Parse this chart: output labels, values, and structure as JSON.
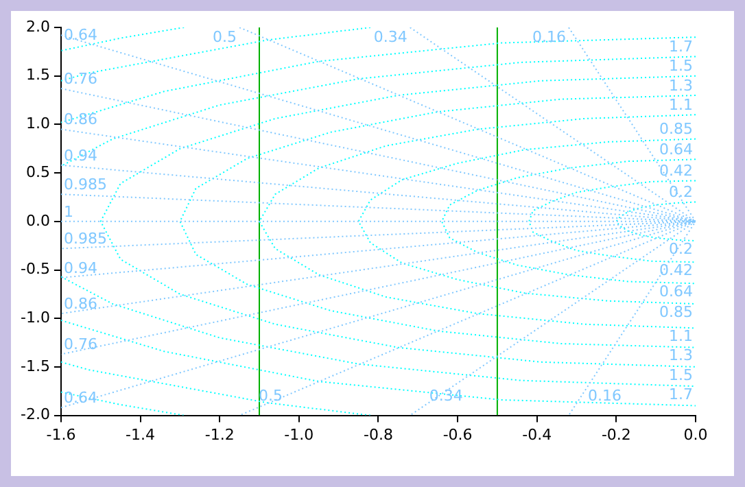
{
  "chart_data": {
    "type": "line",
    "xlim": [
      -1.6,
      0
    ],
    "ylim": [
      -2,
      2
    ],
    "xticks": [
      -1.6,
      -1.4,
      -1.2,
      {
        "value": -1,
        "label": "-1.0"
      },
      -0.8,
      -0.6,
      -0.4,
      -0.2,
      {
        "value": 0,
        "label": "0.0"
      }
    ],
    "yticks": [
      {
        "value": -2,
        "label": "-2.0"
      },
      -1.5,
      {
        "value": -1,
        "label": "-1.0"
      },
      -0.5,
      {
        "value": 0,
        "label": "0.0"
      },
      0.5,
      {
        "value": 1,
        "label": "1.0"
      },
      1.5,
      {
        "value": 2,
        "label": "2.0"
      }
    ],
    "grid": false,
    "legend": false,
    "marker": "none",
    "series": [
      {
        "color": "#80c8ff",
        "line_style": "dotted",
        "x": [
          -1.6,
          0
        ],
        "values": [
          0,
          0
        ]
      },
      {
        "color": "#80c8ff",
        "line_style": "dotted",
        "x": [
          -1.6,
          0,
          -1.6
        ],
        "values": [
          0.28,
          0,
          -0.28
        ]
      },
      {
        "color": "#80c8ff",
        "line_style": "dotted",
        "x": [
          -1.6,
          0,
          -1.6
        ],
        "values": [
          0.58,
          0,
          -0.58
        ]
      },
      {
        "color": "#80c8ff",
        "line_style": "dotted",
        "x": [
          -1.6,
          0,
          -1.6
        ],
        "values": [
          0.95,
          0,
          -0.95
        ]
      },
      {
        "color": "#80c8ff",
        "line_style": "dotted",
        "x": [
          -1.6,
          0,
          -1.6
        ],
        "values": [
          1.37,
          0,
          -1.37
        ]
      },
      {
        "color": "#80c8ff",
        "line_style": "dotted",
        "x": [
          -1.6,
          0,
          -1.6
        ],
        "values": [
          1.92,
          0,
          -1.92
        ]
      },
      {
        "color": "#80c8ff",
        "line_style": "dotted",
        "x": [
          -1.15,
          0,
          -1.15
        ],
        "values": [
          2,
          0,
          -2
        ]
      },
      {
        "color": "#80c8ff",
        "line_style": "dotted",
        "x": [
          -0.72,
          0,
          -0.72
        ],
        "values": [
          2,
          0,
          -2
        ]
      },
      {
        "color": "#80c8ff",
        "line_style": "dotted",
        "x": [
          -0.32,
          0,
          -0.32
        ],
        "values": [
          2,
          0,
          -2
        ]
      },
      {
        "color": "#00ffff",
        "line_style": "dotted",
        "x": [
          0,
          -0.05,
          -0.1,
          -0.14,
          -0.17,
          -0.19,
          -0.2,
          -0.19,
          -0.17,
          -0.14,
          -0.1,
          -0.05,
          0
        ],
        "values": [
          0.2,
          0.19,
          0.17,
          0.14,
          0.1,
          0.05,
          0,
          -0.05,
          -0.1,
          -0.14,
          -0.17,
          -0.19,
          -0.2
        ]
      },
      {
        "color": "#00ffff",
        "line_style": "dotted",
        "x": [
          0,
          -0.11,
          -0.21,
          -0.3,
          -0.36,
          -0.41,
          -0.42,
          -0.41,
          -0.36,
          -0.3,
          -0.21,
          -0.11,
          0
        ],
        "values": [
          0.42,
          0.41,
          0.36,
          0.3,
          0.21,
          0.11,
          0,
          -0.11,
          -0.21,
          -0.3,
          -0.36,
          -0.41,
          -0.42
        ]
      },
      {
        "color": "#00ffff",
        "line_style": "dotted",
        "x": [
          0,
          -0.17,
          -0.32,
          -0.45,
          -0.55,
          -0.62,
          -0.64,
          -0.62,
          -0.55,
          -0.45,
          -0.32,
          -0.17,
          0
        ],
        "values": [
          0.64,
          0.62,
          0.55,
          0.45,
          0.32,
          0.17,
          0,
          -0.17,
          -0.32,
          -0.45,
          -0.55,
          -0.62,
          -0.64
        ]
      },
      {
        "color": "#00ffff",
        "line_style": "dotted",
        "x": [
          0,
          -0.22,
          -0.43,
          -0.6,
          -0.74,
          -0.82,
          -0.85,
          -0.82,
          -0.74,
          -0.6,
          -0.43,
          -0.22,
          0
        ],
        "values": [
          0.85,
          0.82,
          0.74,
          0.6,
          0.43,
          0.22,
          0,
          -0.22,
          -0.43,
          -0.6,
          -0.74,
          -0.82,
          -0.85
        ]
      },
      {
        "color": "#00ffff",
        "line_style": "dotted",
        "x": [
          0,
          -0.28,
          -0.55,
          -0.78,
          -0.95,
          -1.06,
          -1.1,
          -1.06,
          -0.95,
          -0.78,
          -0.55,
          -0.28,
          0
        ],
        "values": [
          1.1,
          1.06,
          0.95,
          0.78,
          0.55,
          0.28,
          0,
          -0.28,
          -0.55,
          -0.78,
          -0.95,
          -1.06,
          -1.1
        ]
      },
      {
        "color": "#00ffff",
        "line_style": "dotted",
        "x": [
          0,
          -0.34,
          -0.65,
          -0.92,
          -1.13,
          -1.26,
          -1.3,
          -1.26,
          -1.13,
          -0.92,
          -0.65,
          -0.34,
          0
        ],
        "values": [
          1.3,
          1.26,
          1.13,
          0.92,
          0.65,
          0.34,
          0,
          -0.34,
          -0.65,
          -0.92,
          -1.13,
          -1.26,
          -1.3
        ]
      },
      {
        "color": "#00ffff",
        "line_style": "dotted",
        "x": [
          0,
          -0.39,
          -0.75,
          -1.06,
          -1.3,
          -1.45,
          -1.5,
          -1.45,
          -1.3,
          -1.06,
          -0.75,
          -0.39,
          0
        ],
        "values": [
          1.5,
          1.45,
          1.3,
          1.06,
          0.75,
          0.39,
          0,
          -0.39,
          -0.75,
          -1.06,
          -1.3,
          -1.45,
          -1.5
        ]
      },
      {
        "color": "#00ffff",
        "line_style": "dotted",
        "x": [
          0,
          -0.44,
          -0.85,
          -1.2,
          -1.47,
          -1.6
        ],
        "values": [
          1.7,
          1.64,
          1.47,
          1.2,
          0.85,
          0.57
        ]
      },
      {
        "color": "#00ffff",
        "line_style": "dotted",
        "x": [
          -1.6,
          -1.47,
          -1.2,
          -0.85,
          -0.44,
          0
        ],
        "values": [
          -0.57,
          -0.85,
          -1.2,
          -1.47,
          -1.64,
          -1.7
        ]
      },
      {
        "color": "#00ffff",
        "line_style": "dotted",
        "x": [
          0,
          -0.49,
          -0.95,
          -1.34,
          -1.6
        ],
        "values": [
          1.9,
          1.84,
          1.65,
          1.34,
          1.02
        ]
      },
      {
        "color": "#00ffff",
        "line_style": "dotted",
        "x": [
          -1.6,
          -1.34,
          -0.95,
          -0.49,
          0
        ],
        "values": [
          -1.02,
          -1.34,
          -1.65,
          -1.84,
          -1.9
        ]
      },
      {
        "color": "#00ffff",
        "line_style": "dotted",
        "x": [
          -0.82,
          -1.08,
          -1.53,
          -1.6
        ],
        "values": [
          2,
          1.87,
          1.53,
          1.45
        ]
      },
      {
        "color": "#00ffff",
        "line_style": "dotted",
        "x": [
          -1.6,
          -1.53,
          -1.08,
          -0.82
        ],
        "values": [
          -1.45,
          -1.53,
          -1.87,
          -2
        ]
      },
      {
        "color": "#00ffff",
        "line_style": "dotted",
        "x": [
          -1.29,
          -1.45,
          -1.6
        ],
        "values": [
          2,
          1.89,
          1.76
        ]
      },
      {
        "color": "#00ffff",
        "line_style": "dotted",
        "x": [
          -1.6,
          -1.45,
          -1.29
        ],
        "values": [
          -1.76,
          -1.89,
          -2
        ]
      },
      {
        "color": "#00b000",
        "line_style": "solid",
        "x": [
          -1.1,
          -1.1
        ],
        "values": [
          -2,
          2
        ]
      },
      {
        "color": "#00b000",
        "line_style": "solid",
        "x": [
          -0.5,
          -0.5
        ],
        "values": [
          -2,
          2
        ]
      }
    ],
    "annotations": [
      {
        "text": "0.64",
        "x": -1.6,
        "y": 1.92
      },
      {
        "text": "0.76",
        "x": -1.6,
        "y": 1.37
      },
      {
        "text": "0.86",
        "x": -1.6,
        "y": 0.95
      },
      {
        "text": "0.94",
        "x": -1.6,
        "y": 0.58
      },
      {
        "text": "0.985",
        "x": -1.6,
        "y": 0.28
      },
      {
        "text": "1",
        "x": -1.6,
        "y": 0
      },
      {
        "text": "0.985",
        "x": -1.6,
        "y": -0.28
      },
      {
        "text": "0.94",
        "x": -1.6,
        "y": -0.58
      },
      {
        "text": "0.86",
        "x": -1.6,
        "y": -0.95
      },
      {
        "text": "0.76",
        "x": -1.6,
        "y": -1.37
      },
      {
        "text": "0.64",
        "x": -1.6,
        "y": -1.92
      },
      {
        "text": "0.5",
        "x": -1.15,
        "y": 2
      },
      {
        "text": "0.34",
        "x": -0.72,
        "y": 2
      },
      {
        "text": "0.16",
        "x": -0.32,
        "y": 2
      },
      {
        "text": "0.5",
        "x": -1.15,
        "y": -2
      },
      {
        "text": "0.34",
        "x": -0.72,
        "y": -2
      },
      {
        "text": "0.16",
        "x": -0.32,
        "y": -2
      },
      {
        "text": "1.7",
        "x": 0,
        "y": 1.7
      },
      {
        "text": "1.5",
        "x": 0,
        "y": 1.5
      },
      {
        "text": "1.3",
        "x": 0,
        "y": 1.3
      },
      {
        "text": "1.1",
        "x": 0,
        "y": 1.1
      },
      {
        "text": "0.85",
        "x": 0,
        "y": 0.85
      },
      {
        "text": "0.64",
        "x": 0,
        "y": 0.64
      },
      {
        "text": "0.42",
        "x": 0,
        "y": 0.42
      },
      {
        "text": "0.2",
        "x": 0,
        "y": 0.2
      },
      {
        "text": "0.2",
        "x": 0,
        "y": -0.2
      },
      {
        "text": "0.42",
        "x": 0,
        "y": -0.42
      },
      {
        "text": "0.64",
        "x": 0,
        "y": -0.64
      },
      {
        "text": "0.85",
        "x": 0,
        "y": -0.85
      },
      {
        "text": "1.1",
        "x": 0,
        "y": -1.1
      },
      {
        "text": "1.3",
        "x": 0,
        "y": -1.3
      },
      {
        "text": "1.5",
        "x": 0,
        "y": -1.5
      },
      {
        "text": "1.7",
        "x": 0,
        "y": -1.7
      }
    ]
  }
}
